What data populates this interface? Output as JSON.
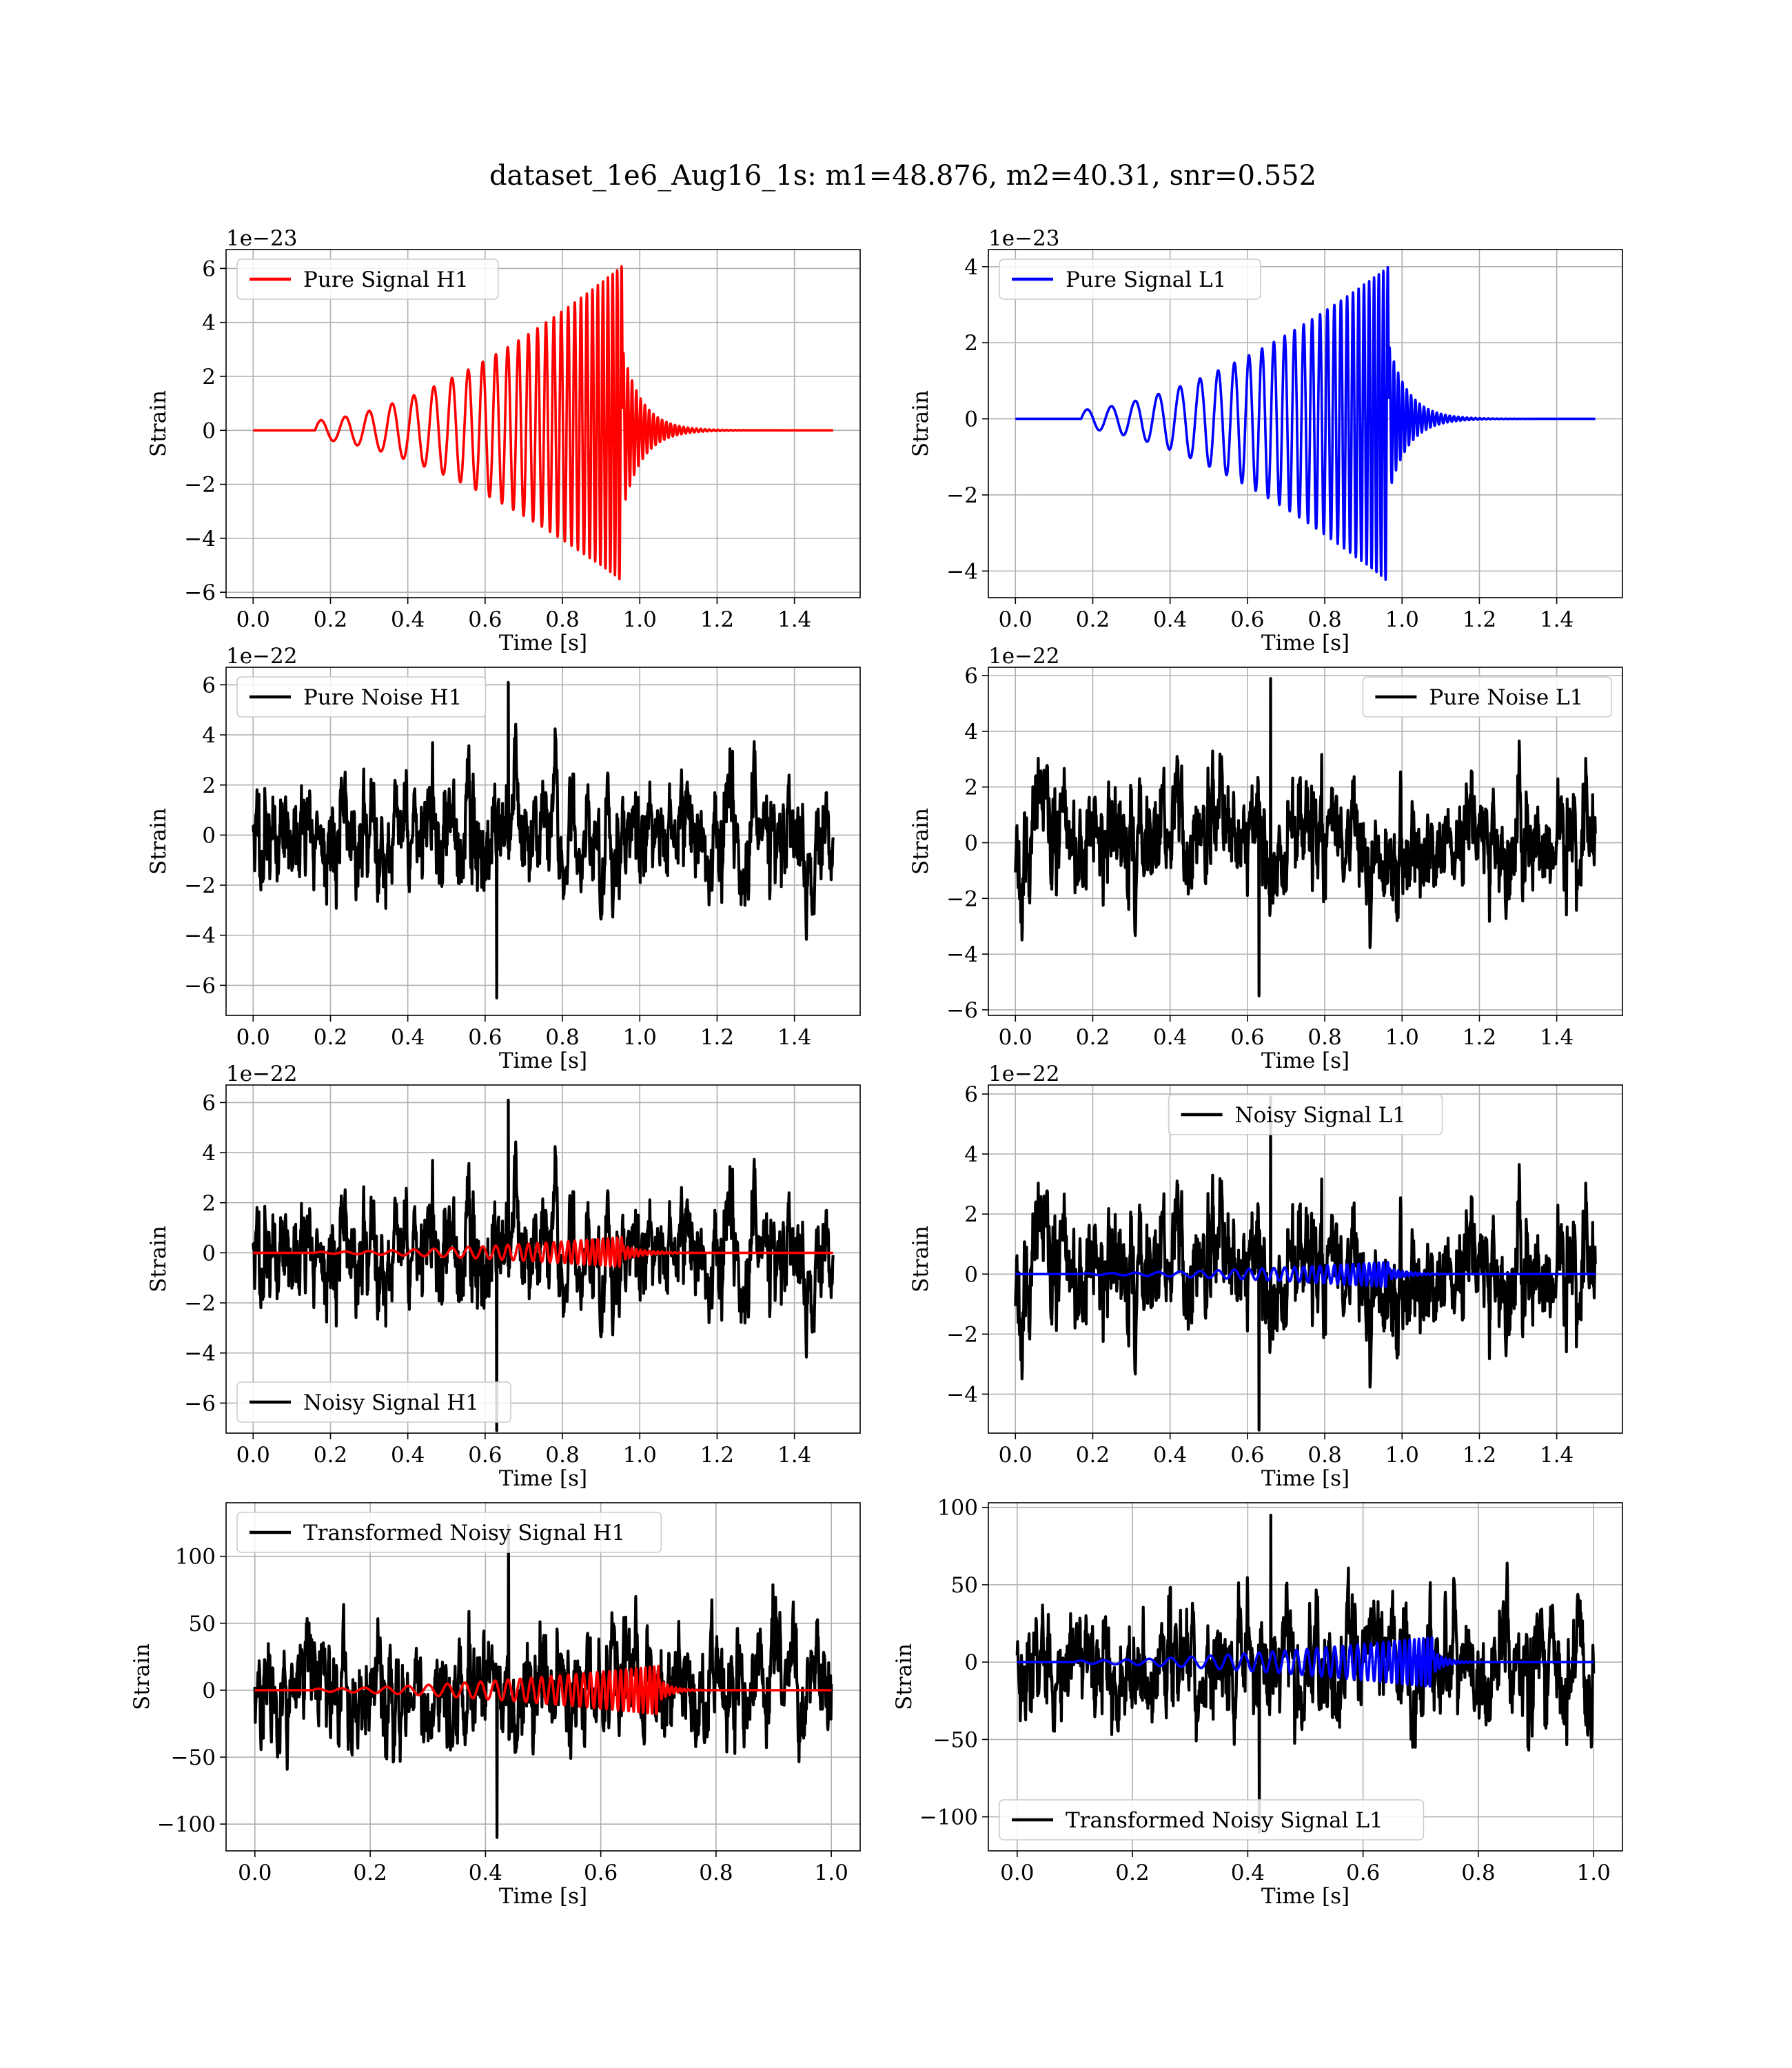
{
  "figure": {
    "title": "dataset_1e6_Aug16_1s: m1=48.876, m2=40.31, snr=0.552"
  },
  "chart_data": [
    {
      "id": "h1-pure",
      "type": "line",
      "kind": "signal",
      "xlabel": "Time [s]",
      "ylabel": "Strain",
      "offset": "1e−23",
      "xlim": [
        -0.07,
        1.57
      ],
      "ylim": [
        -6.2,
        6.7
      ],
      "xticks": [
        0.0,
        0.2,
        0.4,
        0.6,
        0.8,
        1.0,
        1.2,
        1.4
      ],
      "yticks": [
        -6,
        -4,
        -2,
        0,
        2,
        4,
        6
      ],
      "legend_position": "upper-left",
      "grid": true,
      "series": [
        {
          "name": "Pure Signal H1",
          "color": "#ff0000",
          "x_range": [
            0.0,
            1.5
          ],
          "signal": {
            "start": 0.16,
            "merger": 0.955,
            "peak": 6.1,
            "trough": -5.6,
            "f0": 16,
            "f1": 90,
            "ringdown": 0.05
          }
        }
      ]
    },
    {
      "id": "l1-pure",
      "type": "line",
      "kind": "signal",
      "xlabel": "Time [s]",
      "ylabel": "Strain",
      "offset": "1e−23",
      "xlim": [
        -0.07,
        1.57
      ],
      "ylim": [
        -4.7,
        4.45
      ],
      "xticks": [
        0.0,
        0.2,
        0.4,
        0.6,
        0.8,
        1.0,
        1.2,
        1.4
      ],
      "yticks": [
        -4,
        -2,
        0,
        2,
        4
      ],
      "legend_position": "upper-left",
      "grid": true,
      "series": [
        {
          "name": "Pure Signal L1",
          "color": "#0000ff",
          "x_range": [
            0.0,
            1.5
          ],
          "signal": {
            "start": 0.17,
            "merger": 0.965,
            "peak": 4.0,
            "trough": -4.3,
            "f0": 16,
            "f1": 90,
            "ringdown": 0.05
          }
        }
      ]
    },
    {
      "id": "h1-noise",
      "type": "line",
      "kind": "noise",
      "xlabel": "Time [s]",
      "ylabel": "Strain",
      "offset": "1e−22",
      "xlim": [
        -0.07,
        1.57
      ],
      "ylim": [
        -7.2,
        6.7
      ],
      "xticks": [
        0.0,
        0.2,
        0.4,
        0.6,
        0.8,
        1.0,
        1.2,
        1.4
      ],
      "yticks": [
        -6,
        -4,
        -2,
        0,
        2,
        4,
        6
      ],
      "legend_position": "upper-left",
      "grid": true,
      "series": [
        {
          "name": "Pure Noise H1",
          "color": "#000000",
          "x_range": [
            0.0,
            1.5
          ],
          "noise": {
            "amp": 1.6,
            "max": 6.1,
            "min": -6.5,
            "seed": 11
          }
        }
      ]
    },
    {
      "id": "l1-noise",
      "type": "line",
      "kind": "noise",
      "xlabel": "Time [s]",
      "ylabel": "Strain",
      "offset": "1e−22",
      "xlim": [
        -0.07,
        1.57
      ],
      "ylim": [
        -6.2,
        6.3
      ],
      "xticks": [
        0.0,
        0.2,
        0.4,
        0.6,
        0.8,
        1.0,
        1.2,
        1.4
      ],
      "yticks": [
        -6,
        -4,
        -2,
        0,
        2,
        4,
        6
      ],
      "legend_position": "upper-right",
      "grid": true,
      "series": [
        {
          "name": "Pure Noise L1",
          "color": "#000000",
          "x_range": [
            0.0,
            1.5
          ],
          "noise": {
            "amp": 1.5,
            "max": 5.9,
            "min": -5.5,
            "seed": 23
          }
        }
      ]
    },
    {
      "id": "h1-noisy",
      "type": "line",
      "kind": "noisy",
      "xlabel": "Time [s]",
      "ylabel": "Strain",
      "offset": "1e−22",
      "xlim": [
        -0.07,
        1.57
      ],
      "ylim": [
        -7.2,
        6.7
      ],
      "xticks": [
        0.0,
        0.2,
        0.4,
        0.6,
        0.8,
        1.0,
        1.2,
        1.4
      ],
      "yticks": [
        -6,
        -4,
        -2,
        0,
        2,
        4,
        6
      ],
      "legend_position": "lower-left",
      "grid": true,
      "series": [
        {
          "name": "Noisy Signal H1",
          "color": "#000000",
          "x_range": [
            0.0,
            1.5
          ],
          "noise": {
            "amp": 1.6,
            "max": 6.1,
            "min": -7.1,
            "seed": 11
          }
        },
        {
          "name": "",
          "color": "#ff0000",
          "x_range": [
            0.0,
            1.5
          ],
          "signal": {
            "start": 0.16,
            "merger": 0.955,
            "peak": 0.62,
            "trough": -0.56,
            "f0": 16,
            "f1": 90,
            "ringdown": 0.05
          }
        }
      ]
    },
    {
      "id": "l1-noisy",
      "type": "line",
      "kind": "noisy",
      "xlabel": "Time [s]",
      "ylabel": "Strain",
      "offset": "1e−22",
      "xlim": [
        -0.07,
        1.57
      ],
      "ylim": [
        -5.3,
        6.3
      ],
      "xticks": [
        0.0,
        0.2,
        0.4,
        0.6,
        0.8,
        1.0,
        1.2,
        1.4
      ],
      "yticks": [
        -4,
        -2,
        0,
        2,
        4,
        6
      ],
      "legend_position": "upper-center",
      "grid": true,
      "series": [
        {
          "name": "Noisy Signal L1",
          "color": "#000000",
          "x_range": [
            0.0,
            1.5
          ],
          "noise": {
            "amp": 1.5,
            "max": 5.9,
            "min": -5.2,
            "seed": 23
          }
        },
        {
          "name": "",
          "color": "#0000ff",
          "x_range": [
            0.0,
            1.5
          ],
          "signal": {
            "start": 0.17,
            "merger": 0.965,
            "peak": 0.4,
            "trough": -0.43,
            "f0": 16,
            "f1": 90,
            "ringdown": 0.05
          }
        }
      ]
    },
    {
      "id": "h1-transformed",
      "type": "line",
      "kind": "noisy",
      "xlabel": "Time [s]",
      "ylabel": "Strain",
      "offset": "",
      "xlim": [
        -0.05,
        1.05
      ],
      "ylim": [
        -120,
        140
      ],
      "xticks": [
        0.0,
        0.2,
        0.4,
        0.6,
        0.8,
        1.0
      ],
      "yticks": [
        -100,
        -50,
        0,
        50,
        100
      ],
      "legend_position": "upper-left",
      "grid": true,
      "series": [
        {
          "name": "Transformed Noisy Signal H1",
          "color": "#000000",
          "x_range": [
            0.0,
            1.0
          ],
          "noise": {
            "amp": 30,
            "max": 123,
            "min": -110,
            "seed": 37
          }
        },
        {
          "name": "",
          "color": "#ff0000",
          "x_range": [
            0.0,
            1.0
          ],
          "signal": {
            "start": 0.1,
            "merger": 0.7,
            "peak": 18,
            "trough": -18,
            "f0": 25,
            "f1": 140,
            "ringdown": 0.02
          }
        }
      ]
    },
    {
      "id": "l1-transformed",
      "type": "line",
      "kind": "noisy",
      "xlabel": "Time [s]",
      "ylabel": "Strain",
      "offset": "",
      "xlim": [
        -0.05,
        1.05
      ],
      "ylim": [
        -122,
        103
      ],
      "xticks": [
        0.0,
        0.2,
        0.4,
        0.6,
        0.8,
        1.0
      ],
      "yticks": [
        -100,
        -50,
        0,
        50,
        100
      ],
      "legend_position": "lower-left",
      "grid": true,
      "series": [
        {
          "name": "Transformed Noisy Signal L1",
          "color": "#000000",
          "x_range": [
            0.0,
            1.0
          ],
          "noise": {
            "amp": 28,
            "max": 95,
            "min": -110,
            "seed": 53
          }
        },
        {
          "name": "",
          "color": "#0000ff",
          "x_range": [
            0.0,
            1.0
          ],
          "signal": {
            "start": 0.1,
            "merger": 0.72,
            "peak": 16,
            "trough": -16,
            "f0": 25,
            "f1": 140,
            "ringdown": 0.02
          }
        }
      ]
    }
  ]
}
